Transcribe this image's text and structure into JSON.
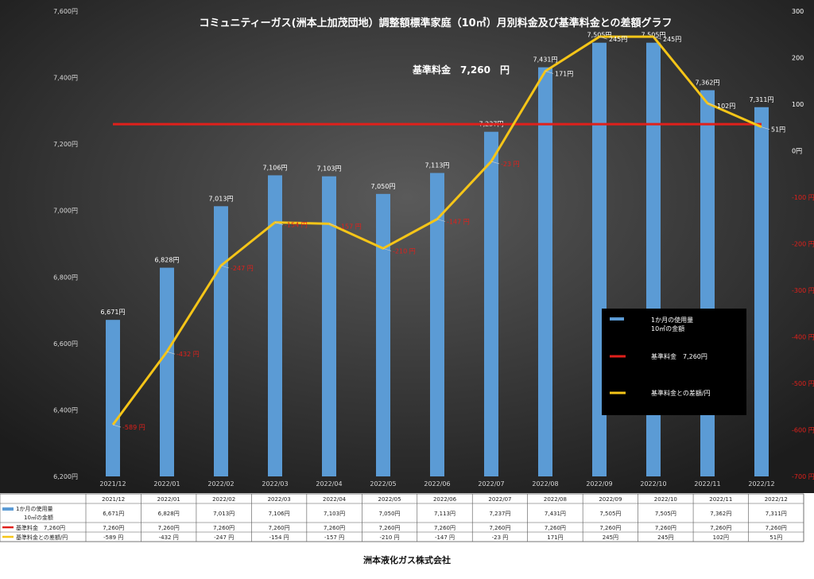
{
  "chart_data": {
    "type": "bar",
    "title": "コミュニティーガス(洲本上加茂団地）調整額標準家庭（10㎥）月別料金及び基準料金との差額グラフ",
    "annotation": "基準料金　7,260　円",
    "categories": [
      "2021/12",
      "2022/01",
      "2022/02",
      "2022/03",
      "2022/04",
      "2022/05",
      "2022/06",
      "2022/07",
      "2022/08",
      "2022/09",
      "2022/10",
      "2022/11",
      "2022/12"
    ],
    "series": [
      {
        "name": "1か月の使用量　10㎥の金額",
        "table_name_lines": [
          "1か月の使用量",
          "10㎥の金額"
        ],
        "legend_lines": [
          "1か月の使用量",
          "10㎥の金額"
        ],
        "type": "bar",
        "axis": "left",
        "color": "#5b9bd5",
        "values": [
          6671,
          6828,
          7013,
          7106,
          7103,
          7050,
          7113,
          7237,
          7431,
          7505,
          7505,
          7362,
          7311
        ],
        "labels": [
          "6,671円",
          "6,828円",
          "7,013円",
          "7,106円",
          "7,103円",
          "7,050円",
          "7,113円",
          "7,237円",
          "7,431円",
          "7,505円",
          "7,505円",
          "7,362円",
          "7,311円"
        ],
        "table_values": [
          "6,671円",
          "6,828円",
          "7,013円",
          "7,106円",
          "7,103円",
          "7,050円",
          "7,113円",
          "7,237円",
          "7,431円",
          "7,505円",
          "7,505円",
          "7,362円",
          "7,311円"
        ]
      },
      {
        "name": "基準料金　7,260円",
        "legend_lines": [
          "基準料金　7,260円"
        ],
        "type": "line",
        "axis": "left",
        "color": "#e0201b",
        "values": [
          7260,
          7260,
          7260,
          7260,
          7260,
          7260,
          7260,
          7260,
          7260,
          7260,
          7260,
          7260,
          7260
        ],
        "table_values": [
          "7,260円",
          "7,260円",
          "7,260円",
          "7,260円",
          "7,260円",
          "7,260円",
          "7,260円",
          "7,260円",
          "7,260円",
          "7,260円",
          "7,260円",
          "7,260円",
          "7,260円"
        ]
      },
      {
        "name": "基準料金との差額/円",
        "legend_lines": [
          "基準料金との差額/円"
        ],
        "type": "line",
        "axis": "right",
        "color": "#f5c518",
        "values": [
          -589,
          -432,
          -247,
          -154,
          -157,
          -210,
          -147,
          -23,
          171,
          245,
          245,
          102,
          51
        ],
        "labels": [
          "-589 円",
          "-432 円",
          "-247 円",
          "-154 円",
          "-157 円",
          "-210 円",
          "-147 円",
          "-23 円",
          "171円",
          "245円",
          "245円",
          "102円",
          "51円"
        ],
        "label_colors": [
          "#e0201b",
          "#e0201b",
          "#e0201b",
          "#e0201b",
          "#e0201b",
          "#e0201b",
          "#e0201b",
          "#e0201b",
          "#ffffff",
          "#ffffff",
          "#ffffff",
          "#ffffff",
          "#ffffff"
        ],
        "table_values": [
          "-589 円",
          "-432 円",
          "-247 円",
          "-154 円",
          "-157 円",
          "-210 円",
          "-147 円",
          "-23 円",
          "171円",
          "245円",
          "245円",
          "102円",
          "51円"
        ]
      }
    ],
    "left_axis": {
      "min": 6200,
      "max": 7600,
      "ticks": [
        6200,
        6400,
        6600,
        6800,
        7000,
        7200,
        7400,
        7600
      ],
      "tick_labels": [
        "6,200円",
        "6,400円",
        "6,600円",
        "6,800円",
        "7,000円",
        "7,200円",
        "7,400円",
        "7,600円"
      ]
    },
    "right_axis": {
      "min": -700,
      "max": 300,
      "ticks": [
        -700,
        -600,
        -500,
        -400,
        -300,
        -200,
        -100,
        0,
        100,
        200,
        300
      ],
      "tick_labels": [
        "-700 円",
        "-600 円",
        "-500 円",
        "-400 円",
        "-300 円",
        "-200 円",
        "-100 円",
        "0円",
        "100",
        "200",
        "300"
      ],
      "tick_colors": [
        "#e0201b",
        "#e0201b",
        "#e0201b",
        "#e0201b",
        "#e0201b",
        "#e0201b",
        "#e0201b",
        "#ffffff",
        "#ffffff",
        "#ffffff",
        "#ffffff"
      ]
    },
    "legend": {
      "position": "right-middle",
      "background": "#000000"
    },
    "grid": false,
    "background": "#2a2a2a"
  },
  "footer": "洲本液化ガス株式会社"
}
